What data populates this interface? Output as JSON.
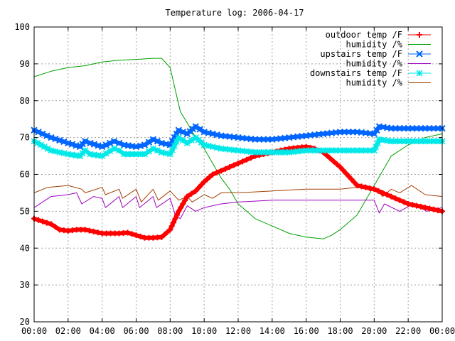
{
  "chart_data": {
    "type": "line",
    "title": "Temperature log: 2006-04-17",
    "xlabel": "",
    "ylabel": "",
    "x_tick_labels": [
      "00:00",
      "02:00",
      "04:00",
      "06:00",
      "08:00",
      "10:00",
      "12:00",
      "14:00",
      "16:00",
      "18:00",
      "20:00",
      "22:00",
      "00:00"
    ],
    "y_tick_labels": [
      "20",
      "30",
      "40",
      "50",
      "60",
      "70",
      "80",
      "90",
      "100"
    ],
    "xlim_hours": [
      0,
      24
    ],
    "ylim": [
      20,
      100
    ],
    "grid": true,
    "legend_position": "top-right",
    "series": [
      {
        "name": "outdoor temp /F",
        "color": "#ff0000",
        "marker": "plus",
        "x": [
          0,
          1,
          1.5,
          2,
          2.5,
          3,
          4,
          5,
          5.5,
          6,
          6.5,
          7,
          7.5,
          8,
          8.5,
          9,
          9.5,
          10,
          10.5,
          11,
          11.5,
          12,
          13,
          14,
          15,
          16,
          16.5,
          17,
          18,
          19,
          20,
          21,
          22,
          23,
          24
        ],
        "y": [
          48,
          46.5,
          45,
          44.7,
          45,
          45,
          44,
          44,
          44.2,
          43.5,
          42.8,
          42.8,
          43,
          45,
          50,
          54,
          55.5,
          58,
          60,
          61,
          62,
          63,
          65,
          66,
          67,
          67.5,
          67,
          66,
          62,
          57,
          56,
          54,
          52,
          51,
          50
        ]
      },
      {
        "name": "humidity /%",
        "color": "#00a000",
        "marker": "none",
        "x": [
          0,
          1,
          2,
          3,
          4,
          5,
          6,
          7,
          7.5,
          8,
          8.3,
          8.6,
          9,
          9.5,
          10,
          10.5,
          11,
          11.5,
          12,
          12.5,
          13,
          14,
          15,
          16,
          17,
          17.5,
          18,
          19,
          20,
          21,
          22,
          23,
          24
        ],
        "y": [
          86.5,
          88,
          89,
          89.5,
          90.5,
          91,
          91.2,
          91.5,
          91.5,
          89,
          83,
          77,
          74,
          70,
          67,
          63,
          59,
          56,
          52,
          50,
          48,
          46,
          44,
          43,
          42.5,
          43.5,
          45,
          49,
          57,
          65,
          68,
          70,
          71
        ]
      },
      {
        "name": "upstairs temp /F",
        "color": "#0066ff",
        "marker": "x",
        "x": [
          0,
          1,
          2,
          2.7,
          3,
          3.3,
          4,
          4.7,
          5,
          5.3,
          6,
          6.5,
          7,
          7.5,
          8,
          8.5,
          9,
          9.5,
          10,
          11,
          12,
          13,
          14,
          15,
          16,
          17,
          18,
          19,
          20,
          20.3,
          21,
          22,
          23,
          24
        ],
        "y": [
          72,
          70,
          68.5,
          67.5,
          69,
          68.5,
          67.5,
          69,
          68.5,
          68,
          67.5,
          68,
          69.5,
          68.5,
          68,
          72,
          71,
          73,
          71.5,
          70.5,
          70,
          69.5,
          69.5,
          70,
          70.5,
          71,
          71.5,
          71.5,
          71,
          73,
          72.5,
          72.5,
          72.5,
          72.5
        ]
      },
      {
        "name": "humidity /%",
        "color": "#a000c0",
        "marker": "none",
        "x": [
          0,
          1,
          2,
          2.5,
          2.8,
          3.5,
          4,
          4.2,
          5,
          5.2,
          6,
          6.2,
          7,
          7.2,
          8,
          8.3,
          8.6,
          9,
          9.5,
          10,
          11,
          12,
          14,
          16,
          18,
          20,
          20.3,
          20.6,
          21.5,
          22.3,
          23.1,
          24
        ],
        "y": [
          51,
          54,
          54.5,
          55,
          52,
          54,
          53.5,
          51,
          54,
          51,
          54,
          51,
          54,
          51,
          53.5,
          49,
          48,
          51.5,
          50,
          51,
          52,
          52.5,
          53,
          53,
          53,
          53,
          49.5,
          52,
          50,
          52,
          50,
          51
        ]
      },
      {
        "name": "downstairs temp /F",
        "color": "#00e8e8",
        "marker": "star",
        "x": [
          0,
          1,
          2,
          2.7,
          3,
          3.3,
          4,
          4.7,
          5,
          5.3,
          6,
          6.5,
          7,
          7.5,
          8,
          8.5,
          9,
          9.5,
          10,
          11,
          12,
          13,
          14,
          15,
          16,
          17,
          18,
          19,
          20,
          20.3,
          21,
          22,
          23,
          24
        ],
        "y": [
          69,
          66.5,
          65.5,
          65,
          66.5,
          65.5,
          65,
          67,
          66.5,
          65.5,
          65.5,
          65.5,
          67,
          66,
          65.5,
          70,
          68.5,
          70,
          68,
          67,
          66.5,
          66,
          66,
          66,
          66.5,
          66.5,
          66.5,
          66.5,
          66.5,
          69.5,
          69,
          69,
          69,
          69
        ]
      },
      {
        "name": "humidity /%",
        "color": "#a04000",
        "marker": "none",
        "x": [
          0,
          0.8,
          2,
          2.8,
          3,
          4,
          4.2,
          5,
          5.2,
          6,
          6.3,
          7,
          7.3,
          8,
          8.5,
          9,
          9.3,
          10,
          10.5,
          11,
          12,
          14,
          16,
          18,
          19,
          20,
          20.5,
          21,
          21.5,
          22.2,
          23,
          24
        ],
        "y": [
          55,
          56.5,
          57,
          56,
          55,
          56.5,
          54.5,
          56,
          53.5,
          56,
          52.5,
          56,
          53,
          55.5,
          53,
          54,
          52.5,
          54.5,
          53.5,
          55,
          55,
          55.5,
          56,
          56,
          56.5,
          56.5,
          54,
          56,
          55,
          57,
          54.5,
          54
        ]
      }
    ]
  }
}
